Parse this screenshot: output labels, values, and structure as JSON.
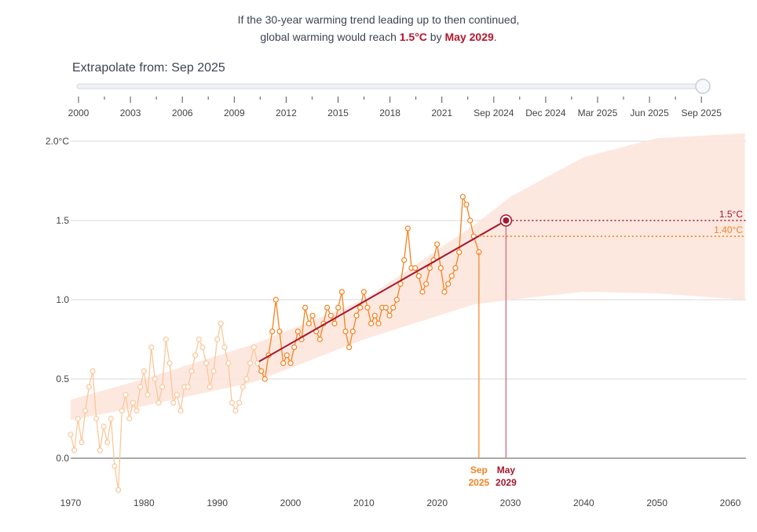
{
  "headline": {
    "line1": "If the 30-year warming trend leading up to then continued,",
    "line2_prefix": "global warming would reach ",
    "target": "1.5°C",
    "by": " by ",
    "date": "May 2029",
    "suffix": "."
  },
  "slider": {
    "label": "Extrapolate from: Sep 2025",
    "value": "Sep 2025",
    "tick_labels": [
      "2000",
      "2003",
      "2006",
      "2009",
      "2012",
      "2015",
      "2018",
      "2021",
      "Sep 2024",
      "Dec 2024",
      "Mar 2025",
      "Jun 2025",
      "Sep 2025"
    ]
  },
  "colors": {
    "observed": "#f5821f",
    "observed_faded": "#fbc79a",
    "trend": "#a5182f",
    "band": "#fde4da",
    "threshold": "#a5182f",
    "current": "#f5821f"
  },
  "chart_data": {
    "type": "line",
    "xlim": [
      1970,
      2062
    ],
    "ylim": [
      -0.25,
      2.05
    ],
    "x_ticks": [
      1970,
      1980,
      1990,
      2000,
      2010,
      2020,
      2030,
      2040,
      2050,
      2060
    ],
    "y_ticks": [
      {
        "v": 0,
        "label": "0.0"
      },
      {
        "v": 0.5,
        "label": "0.5"
      },
      {
        "v": 1,
        "label": "1.0"
      },
      {
        "v": 1.5,
        "label": "1.5"
      },
      {
        "v": 2,
        "label": "2.0°C"
      }
    ],
    "grid": true,
    "window_start": 1995.7,
    "observed": {
      "x": [
        1970,
        1970.5,
        1971,
        1971.5,
        1972,
        1972.5,
        1973,
        1973.5,
        1974,
        1974.5,
        1975,
        1975.5,
        1976,
        1976.5,
        1977,
        1977.5,
        1978,
        1978.5,
        1979,
        1979.5,
        1980,
        1980.5,
        1981,
        1981.5,
        1982,
        1982.5,
        1983,
        1983.5,
        1984,
        1984.5,
        1985,
        1985.5,
        1986,
        1986.5,
        1987,
        1987.5,
        1988,
        1988.5,
        1989,
        1989.5,
        1990,
        1990.5,
        1991,
        1991.5,
        1992,
        1992.5,
        1993,
        1993.5,
        1994,
        1994.5,
        1995,
        1995.5,
        1996,
        1996.5,
        1997,
        1997.5,
        1998,
        1998.5,
        1999,
        1999.5,
        2000,
        2000.5,
        2001,
        2001.5,
        2002,
        2002.5,
        2003,
        2003.5,
        2004,
        2004.5,
        2005,
        2005.5,
        2006,
        2006.5,
        2007,
        2007.5,
        2008,
        2008.5,
        2009,
        2009.5,
        2010,
        2010.5,
        2011,
        2011.5,
        2012,
        2012.5,
        2013,
        2013.5,
        2014,
        2014.5,
        2015,
        2015.5,
        2016,
        2016.5,
        2017,
        2017.5,
        2018,
        2018.5,
        2019,
        2019.5,
        2020,
        2020.5,
        2021,
        2021.5,
        2022,
        2022.5,
        2023,
        2023.5,
        2024,
        2024.5,
        2025,
        2025.7
      ],
      "y": [
        0.15,
        0.05,
        0.25,
        0.1,
        0.3,
        0.45,
        0.55,
        0.25,
        0.05,
        0.2,
        0.1,
        0.25,
        -0.05,
        -0.2,
        0.3,
        0.4,
        0.25,
        0.35,
        0.3,
        0.45,
        0.55,
        0.4,
        0.7,
        0.5,
        0.35,
        0.45,
        0.75,
        0.6,
        0.35,
        0.4,
        0.3,
        0.45,
        0.45,
        0.55,
        0.65,
        0.75,
        0.7,
        0.6,
        0.45,
        0.55,
        0.75,
        0.85,
        0.7,
        0.6,
        0.35,
        0.3,
        0.35,
        0.45,
        0.5,
        0.6,
        0.7,
        0.6,
        0.55,
        0.5,
        0.65,
        0.8,
        1.0,
        0.8,
        0.6,
        0.65,
        0.6,
        0.7,
        0.8,
        0.75,
        0.95,
        0.85,
        0.9,
        0.8,
        0.75,
        0.85,
        0.95,
        0.9,
        0.85,
        0.95,
        1.05,
        0.8,
        0.7,
        0.8,
        0.9,
        0.95,
        1.05,
        0.95,
        0.85,
        0.9,
        0.85,
        0.95,
        0.95,
        0.9,
        0.95,
        1.0,
        1.1,
        1.25,
        1.45,
        1.2,
        1.2,
        1.15,
        1.05,
        1.1,
        1.2,
        1.25,
        1.35,
        1.2,
        1.05,
        1.1,
        1.15,
        1.2,
        1.3,
        1.65,
        1.6,
        1.5,
        1.4,
        1.3
      ]
    },
    "trend": {
      "x": [
        1995.7,
        2029.4
      ],
      "y": [
        0.61,
        1.5
      ]
    },
    "band": {
      "x": [
        1970,
        1980,
        1995,
        2010,
        2025,
        2030,
        2040,
        2050,
        2062
      ],
      "lower": [
        0.24,
        0.33,
        0.48,
        0.75,
        0.97,
        1.0,
        1.05,
        1.04,
        1.0
      ],
      "upper": [
        0.37,
        0.5,
        0.72,
        1.0,
        1.47,
        1.65,
        1.9,
        2.02,
        2.05
      ]
    },
    "threshold": {
      "value": 1.5,
      "label": "1.5°C"
    },
    "current_level": {
      "value": 1.4,
      "label": "1.40°C"
    },
    "markers": [
      {
        "x": 2025.7,
        "label1": "Sep",
        "label2": "2025"
      },
      {
        "x": 2029.4,
        "label1": "May",
        "label2": "2029"
      }
    ]
  }
}
